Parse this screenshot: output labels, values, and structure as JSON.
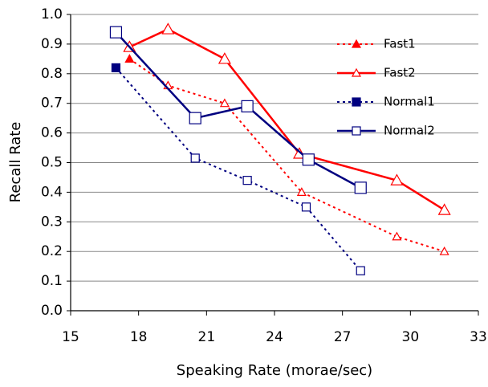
{
  "chart_data": {
    "type": "line",
    "x_label": "Speaking Rate (morae/sec)",
    "y_label": "Recall Rate",
    "xlim": [
      15,
      33
    ],
    "xticks": [
      15,
      18,
      21,
      24,
      27,
      30,
      33
    ],
    "ylim": [
      0,
      1
    ],
    "yticks": [
      {
        "value": 0,
        "label": "0.0"
      },
      0.1,
      0.2,
      0.3,
      0.4,
      0.5,
      0.6,
      0.7,
      0.8,
      0.9,
      {
        "value": 1,
        "label": "1.0"
      }
    ],
    "grid": true,
    "legend": "upper right",
    "series": [
      {
        "name": "Fast1",
        "color": "#ff0000",
        "dashed": true,
        "marker": "triangle",
        "filled": true,
        "x": [
          17.6,
          19.3,
          21.8,
          25.2,
          29.4,
          31.5
        ],
        "values": [
          0.85,
          0.76,
          0.7,
          0.4,
          0.25,
          0.2
        ]
      },
      {
        "name": "Fast2",
        "color": "#ff0000",
        "dashed": false,
        "marker": "triangle",
        "filled": false,
        "x": [
          17.6,
          19.3,
          21.8,
          25.1,
          29.4,
          31.5
        ],
        "values": [
          0.89,
          0.95,
          0.85,
          0.53,
          0.44,
          0.34
        ]
      },
      {
        "name": "Normal1",
        "color": "#000080",
        "dashed": true,
        "marker": "square",
        "filled": true,
        "x": [
          17.0,
          20.5,
          22.8,
          25.4,
          27.8
        ],
        "values": [
          0.82,
          0.515,
          0.44,
          0.35,
          0.135
        ]
      },
      {
        "name": "Normal2",
        "color": "#000080",
        "dashed": false,
        "marker": "square",
        "filled": false,
        "x": [
          17.0,
          20.5,
          22.8,
          25.5,
          27.8
        ],
        "values": [
          0.94,
          0.65,
          0.69,
          0.51,
          0.415
        ]
      }
    ]
  }
}
